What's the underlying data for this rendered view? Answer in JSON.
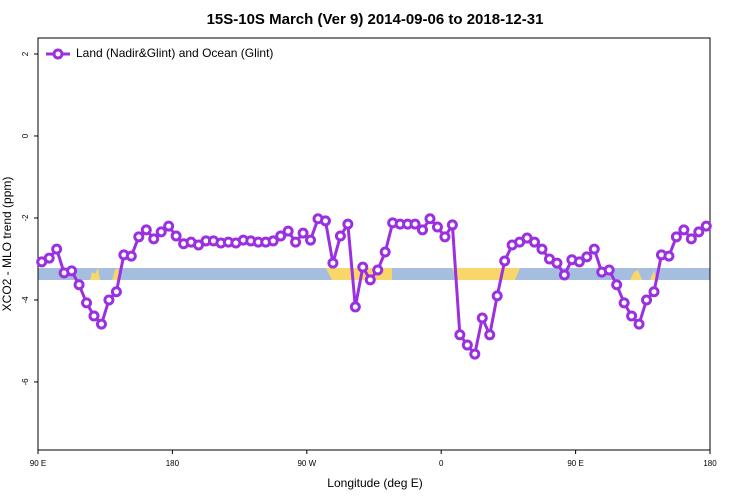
{
  "chart_data": {
    "type": "line",
    "title": "15S-10S March (Ver 9)   2014-09-06 to 2018-12-31",
    "x_label": "Longitude (deg E)",
    "y_label": "XCO2 - MLO trend (ppm)",
    "xlim": [
      90,
      540
    ],
    "ylim": [
      -7.66,
      2.39
    ],
    "xticks": [
      {
        "value": 90,
        "label": "90 E"
      },
      {
        "value": 180,
        "label": "180"
      },
      {
        "value": 270,
        "label": "90 W"
      },
      {
        "value": 360,
        "label": "0"
      },
      {
        "value": 450,
        "label": "90 E"
      },
      {
        "value": 540,
        "label": "180"
      }
    ],
    "yticks": [
      2,
      0,
      -2,
      -4,
      -6
    ],
    "legend": "top-left",
    "x": [
      92.5,
      97.5,
      102.5,
      107.5,
      112.5,
      117.5,
      122.5,
      127.5,
      132.5,
      137.5,
      142.5,
      147.5,
      152.5,
      157.5,
      162.5,
      167.5,
      172.5,
      177.5,
      182.5,
      187.5,
      192.5,
      197.5,
      202.5,
      207.5,
      212.5,
      217.5,
      222.5,
      227.5,
      232.5,
      237.5,
      242.5,
      247.5,
      252.5,
      257.5,
      262.5,
      267.5,
      272.5,
      277.5,
      282.5,
      287.5,
      292.5,
      297.5,
      302.5,
      307.5,
      312.5,
      317.5,
      322.5,
      327.5,
      332.5,
      337.5,
      342.5,
      347.5,
      352.5,
      357.5,
      362.5,
      367.5,
      372.5,
      377.5,
      382.5,
      387.5,
      392.5,
      397.5,
      402.5,
      407.5,
      412.5,
      417.5,
      422.5,
      427.5,
      432.5,
      437.5,
      442.5,
      447.5,
      452.5,
      457.5,
      462.5,
      467.5,
      472.5,
      477.5,
      482.5,
      487.5,
      492.5,
      497.5,
      502.5,
      507.5,
      512.5,
      517.5,
      522.5,
      527.5,
      532.5,
      537.5
    ],
    "series": [
      {
        "name": "Land (Nadir&Glint) and Ocean (Glint)",
        "color": "#9b30e0",
        "values": [
          -3.07,
          -2.98,
          -2.76,
          -3.34,
          -3.29,
          -3.63,
          -4.07,
          -4.39,
          -4.59,
          -4.0,
          -3.8,
          -2.9,
          -2.93,
          -2.46,
          -2.29,
          -2.51,
          -2.34,
          -2.2,
          -2.44,
          -2.63,
          -2.59,
          -2.66,
          -2.56,
          -2.56,
          -2.61,
          -2.59,
          -2.61,
          -2.54,
          -2.56,
          -2.59,
          -2.59,
          -2.56,
          -2.44,
          -2.32,
          -2.59,
          -2.37,
          -2.54,
          -2.02,
          -2.07,
          -3.1,
          -2.44,
          -2.15,
          -4.17,
          -3.2,
          -3.51,
          -3.27,
          -2.83,
          -2.12,
          -2.15,
          -2.15,
          -2.15,
          -2.29,
          -2.02,
          -2.22,
          -2.46,
          -2.17,
          -4.85,
          -5.1,
          -5.32,
          -4.44,
          -4.85,
          -3.9,
          -3.05,
          -2.66,
          -2.59,
          -2.49,
          -2.59,
          -2.76,
          -3.0,
          -3.1,
          -3.39,
          -3.02,
          -3.07,
          -2.95,
          -2.76,
          -3.32,
          -3.27,
          -3.63,
          -4.07,
          -4.39,
          -4.59,
          -4.0,
          -3.8,
          -2.9,
          -2.93,
          -2.46,
          -2.29,
          -2.51,
          -2.34,
          -2.2
        ]
      }
    ]
  }
}
